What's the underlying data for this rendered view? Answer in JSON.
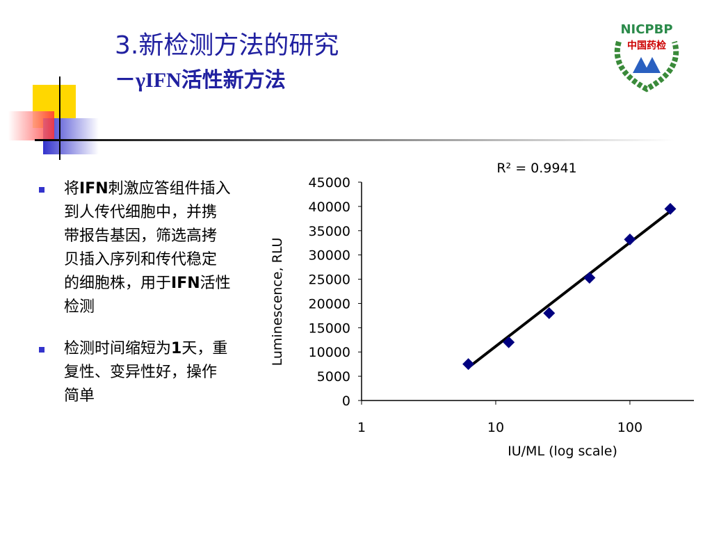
{
  "header": {
    "title": "3.新检测方法的研究",
    "subtitle": "－γIFN活性新方法"
  },
  "logo": {
    "top": "NICPBP",
    "bottom": "中国药检"
  },
  "bullets": [
    {
      "runs": [
        {
          "text": "将"
        },
        {
          "text": "IFN",
          "bold": true
        },
        {
          "text": "刺激应答组件插入到人传代细胞中，并携带报告基因，筛选高拷贝插入序列和传代稳定的细胞株，用于"
        },
        {
          "text": "IFN",
          "bold": true
        },
        {
          "text": "活性检测"
        }
      ]
    },
    {
      "runs": [
        {
          "text": "检测时间缩短为"
        },
        {
          "text": "1",
          "bold": true
        },
        {
          "text": "天，重复性、变异性好，操作简单"
        }
      ]
    }
  ],
  "chart_data": {
    "type": "scatter",
    "annotation": "R² = 0.9941",
    "x_label": "IU/ML (log scale)",
    "y_label": "Luminescence, RLU",
    "x": [
      6.25,
      12.5,
      25,
      50,
      100,
      200
    ],
    "values": [
      7500,
      12000,
      18000,
      25300,
      33200,
      39500
    ],
    "color": "#000080",
    "trendline": {
      "x": [
        6.25,
        200
      ],
      "values": [
        6800,
        39000
      ],
      "color": "#000000"
    },
    "xscale": "log",
    "xlim": [
      1,
      300
    ],
    "xticks": [
      1,
      10,
      100
    ],
    "ylim": [
      0,
      45000
    ],
    "yticks": [
      0,
      5000,
      10000,
      15000,
      20000,
      25000,
      30000,
      35000,
      40000,
      45000
    ],
    "grid": false
  }
}
